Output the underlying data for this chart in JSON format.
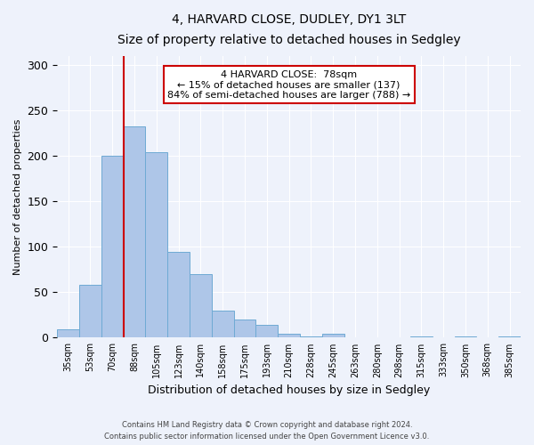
{
  "title1": "4, HARVARD CLOSE, DUDLEY, DY1 3LT",
  "title2": "Size of property relative to detached houses in Sedgley",
  "xlabel": "Distribution of detached houses by size in Sedgley",
  "ylabel": "Number of detached properties",
  "categories": [
    "35sqm",
    "53sqm",
    "70sqm",
    "88sqm",
    "105sqm",
    "123sqm",
    "140sqm",
    "158sqm",
    "175sqm",
    "193sqm",
    "210sqm",
    "228sqm",
    "245sqm",
    "263sqm",
    "280sqm",
    "298sqm",
    "315sqm",
    "333sqm",
    "350sqm",
    "368sqm",
    "385sqm"
  ],
  "values": [
    9,
    58,
    200,
    232,
    204,
    94,
    70,
    30,
    20,
    14,
    4,
    1,
    4,
    0,
    0,
    0,
    1,
    0,
    1,
    0,
    1
  ],
  "bar_color": "#aec6e8",
  "bar_edge_color": "#6faad4",
  "ylim": [
    0,
    310
  ],
  "yticks": [
    0,
    50,
    100,
    150,
    200,
    250,
    300
  ],
  "property_line_color": "#cc0000",
  "annotation_text": "4 HARVARD CLOSE:  78sqm\n← 15% of detached houses are smaller (137)\n84% of semi-detached houses are larger (788) →",
  "annotation_box_color": "#ffffff",
  "annotation_box_edge_color": "#cc0000",
  "footer1": "Contains HM Land Registry data © Crown copyright and database right 2024.",
  "footer2": "Contains public sector information licensed under the Open Government Licence v3.0.",
  "background_color": "#eef2fb",
  "plot_background_color": "#eef2fb",
  "grid_color": "#ffffff",
  "title1_fontsize": 11,
  "title2_fontsize": 9.5
}
